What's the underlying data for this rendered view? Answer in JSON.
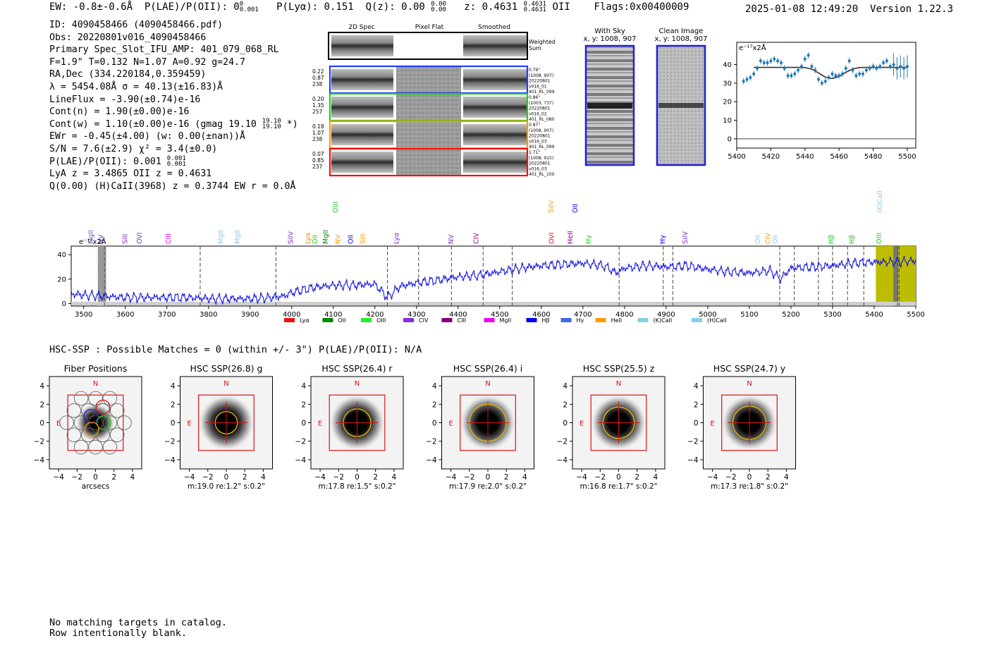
{
  "header": {
    "ew": "EW: -0.8±-0.6Å",
    "plae_label": "P(LAE)/P(OII): 0",
    "plae_sup": "0",
    "plae_sub": "0.001",
    "plya": "P(Lyα): 0.151",
    "qz_label": "Q(z): 0.00",
    "qz_sup": "0.00",
    "qz_sub": "0.00",
    "z_label": "z: 0.4631",
    "z_sup": "0.4631",
    "z_sub": "0.4631",
    "z_line": "OII",
    "flags": "Flags:0x00400009",
    "timestamp": "2025-01-08 12:49:20",
    "version": "Version 1.22.3"
  },
  "info": {
    "id": "ID: 4090458466 (4090458466.pdf)",
    "obs": "Obs: 20220801v016_4090458466",
    "primary": "Primary Spec_Slot_IFU_AMP: 401_079_068_RL",
    "fiber": "F=1.9\"  T=0.132  N=1.07  A=0.92  g=24.7",
    "radec": "RA,Dec (334.220184,0.359459)",
    "lambda": "λ = 5454.08Å  σ = 40.13(±16.83)Å",
    "lineflux": "LineFlux = -3.90(±0.74)e-16",
    "contn": "Cont(n) = 1.90(±0.00)e-16",
    "contw_a": "Cont(w) = 1.10(±0.00)e-16 (gmag 19.10",
    "contw_sup": "19.10",
    "contw_sub": "19.10",
    "contw_b": "*)",
    "ewr": "EWr = -0.45(±4.00) (w: 0.00(±nan))Å",
    "sn": "S/N = 7.6(±2.9)  χ² = 3.4(±0.0)",
    "plae_a": "P(LAE)/P(OII): 0.001",
    "plae_sup": "0.001",
    "plae_sub": "0.001",
    "lya": "LyA z = 3.4865  OII z = 0.4631",
    "q": "Q(0.00) (H)CaII(3968) z = 0.3744  EW r = 0.0Å"
  },
  "cutouts": {
    "headers": [
      "2D Spec",
      "Pixel Flat",
      "Smoothed"
    ],
    "weighted_sum_1": "Weighted",
    "weighted_sum_2": "Sum",
    "rows": [
      {
        "left": [
          "0.22",
          "0.87",
          "238"
        ],
        "right": [
          "0.79\"",
          "(1008, 907)",
          "20220801",
          "v016_01",
          "401_RL_099"
        ],
        "color": "#1f3fff"
      },
      {
        "left": [
          "0.20",
          "1.35",
          "257"
        ],
        "right": [
          "0.86\"",
          "(1003, 737)",
          "20220801",
          "v016_02",
          "401_RL_080"
        ],
        "color": "#22cc22"
      },
      {
        "left": [
          "0.18",
          "1.07",
          "238"
        ],
        "right": [
          "0.87\"",
          "(1008, 907)",
          "20220801",
          "v016_03",
          "401_RL_099"
        ],
        "color": "#ff9900"
      },
      {
        "left": [
          "0.07",
          "0.85",
          "237"
        ],
        "right": [
          "1.71\"",
          "(1008, 915)",
          "20220801",
          "v016_03",
          "401_RL_100"
        ],
        "color": "#ee1111"
      }
    ]
  },
  "sky_panels": {
    "with_sky": "With Sky",
    "with_sky_xy": "x, y: 1008, 907",
    "clean": "Clean Image",
    "clean_xy": "x, y: 1008, 907"
  },
  "chart_data": [
    {
      "type": "scatter",
      "title": "",
      "unit_label": "e⁻¹⁷x2Å",
      "xlim": [
        5400,
        5505
      ],
      "ylim": [
        -5,
        52
      ],
      "xticks": [
        5400,
        5420,
        5440,
        5460,
        5480,
        5500
      ],
      "yticks": [
        0,
        10,
        20,
        30,
        40
      ],
      "points": {
        "x": [
          5404,
          5406,
          5408,
          5410,
          5412,
          5414,
          5416,
          5418,
          5420,
          5422,
          5424,
          5426,
          5428,
          5430,
          5432,
          5434,
          5436,
          5438,
          5440,
          5442,
          5444,
          5446,
          5448,
          5450,
          5452,
          5454,
          5456,
          5458,
          5460,
          5462,
          5464,
          5466,
          5468,
          5470,
          5472,
          5474,
          5476,
          5478,
          5480,
          5482,
          5484,
          5486,
          5488,
          5490,
          5492,
          5494,
          5496,
          5498,
          5500
        ],
        "y": [
          31,
          32,
          33,
          35,
          38,
          42,
          41,
          41,
          42,
          43,
          42,
          41,
          38,
          34,
          34,
          35,
          37,
          39,
          43,
          45,
          39,
          37,
          32,
          30,
          31,
          33,
          35,
          34,
          34,
          35,
          38,
          42,
          37,
          34,
          35,
          35,
          37,
          38,
          39,
          38,
          39,
          41,
          42,
          39,
          40,
          38,
          39,
          38,
          39
        ]
      },
      "model": {
        "x": [
          5410,
          5420,
          5430,
          5436,
          5440,
          5444,
          5448,
          5452,
          5456,
          5460,
          5464,
          5468,
          5472,
          5476,
          5480,
          5490,
          5500
        ],
        "y": [
          38.5,
          38.5,
          38.5,
          38.5,
          38.4,
          37.5,
          35.5,
          33.2,
          32.5,
          33.6,
          35.8,
          37.7,
          38.4,
          38.5,
          38.5,
          38.5,
          38.5
        ]
      }
    },
    {
      "type": "line",
      "title": "",
      "unit_label": "e⁻¹⁷x2Å",
      "xlim": [
        3470,
        5500
      ],
      "ylim": [
        -2,
        47
      ],
      "xticks": [
        3500,
        3600,
        3700,
        3800,
        3900,
        4000,
        4100,
        4200,
        4300,
        4400,
        4500,
        4600,
        4700,
        4800,
        4900,
        5000,
        5100,
        5200,
        5300,
        5400,
        5500
      ],
      "yticks": [
        0,
        20,
        40
      ],
      "continuum": {
        "x": [
          3470,
          3500,
          3550,
          3600,
          3650,
          3700,
          3750,
          3800,
          3850,
          3900,
          3950,
          3980,
          4000,
          4050,
          4100,
          4150,
          4200,
          4230,
          4260,
          4300,
          4350,
          4400,
          4450,
          4500,
          4550,
          4600,
          4650,
          4700,
          4750,
          4780,
          4800,
          4850,
          4900,
          4950,
          5000,
          5050,
          5100,
          5150,
          5175,
          5200,
          5250,
          5300,
          5350,
          5400,
          5450,
          5500
        ],
        "y": [
          8,
          7,
          6,
          5,
          5,
          5,
          5,
          4,
          4,
          4,
          5,
          6,
          9,
          13,
          15,
          15,
          16,
          5,
          14,
          17,
          19,
          22,
          23,
          26,
          29,
          31,
          32,
          33,
          31,
          25,
          29,
          31,
          30,
          31,
          28,
          26,
          25,
          27,
          20,
          29,
          30,
          31,
          33,
          34,
          34,
          35
        ]
      },
      "marked_lines": [
        3550,
        3780,
        3962,
        4230,
        4305,
        4384,
        4460,
        4530,
        4787,
        4893,
        4916,
        5173,
        5208,
        5266,
        5300,
        5336,
        5375,
        5456,
        5460
      ],
      "line_labels": [
        {
          "text": "MgII",
          "x": 3516,
          "color": "#6a5acd"
        },
        {
          "text": "NV",
          "x": 3540,
          "color": "#7b2cbf"
        },
        {
          "text": "SiII",
          "x": 3598,
          "color": "#7b2cbf"
        },
        {
          "text": "OVI",
          "x": 3633,
          "color": "#7b2cbf"
        },
        {
          "text": "CIII",
          "x": 3702,
          "color": "#ee00ee"
        },
        {
          "text": "MgII",
          "x": 3828,
          "color": "#87ceeb"
        },
        {
          "text": "MgII",
          "x": 3868,
          "color": "#87ceeb"
        },
        {
          "text": "SiIV",
          "x": 3996,
          "color": "#7b2cbf"
        },
        {
          "text": "Lyα",
          "x": 4038,
          "color": "#ff8800"
        },
        {
          "text": "OII",
          "x": 4055,
          "color": "#22cc22"
        },
        {
          "text": "MgII",
          "x": 4080,
          "color": "#008800"
        },
        {
          "text": "NV",
          "x": 4110,
          "color": "#ff9900"
        },
        {
          "text": "OII",
          "x": 4140,
          "color": "#0000ff"
        },
        {
          "text": "SiII",
          "x": 4170,
          "color": "#ff9900"
        },
        {
          "text": "Lyα",
          "x": 4250,
          "color": "#7b2cbf"
        },
        {
          "text": "NV",
          "x": 4382,
          "color": "#7b2cbf"
        },
        {
          "text": "CIV",
          "x": 4442,
          "color": "#800080"
        },
        {
          "text": "OVI",
          "x": 4623,
          "color": "#ee1111"
        },
        {
          "text": "HeII",
          "x": 4668,
          "color": "#800080"
        },
        {
          "text": "Hγ",
          "x": 4712,
          "color": "#22cc22"
        },
        {
          "text": "Hγ",
          "x": 4890,
          "color": "#0000ff"
        },
        {
          "text": "SiIV",
          "x": 4944,
          "color": "#7b2cbf"
        },
        {
          "text": "OII",
          "x": 5119,
          "color": "#87ceeb"
        },
        {
          "text": "CIV",
          "x": 5143,
          "color": "#ff9900"
        },
        {
          "text": "OII",
          "x": 5160,
          "color": "#87ceeb"
        },
        {
          "text": "Hβ",
          "x": 5295,
          "color": "#22cc22"
        },
        {
          "text": "Hβ",
          "x": 5345,
          "color": "#22cc22"
        },
        {
          "text": "OIII",
          "x": 5410,
          "color": "#22cc22"
        }
      ],
      "upper_labels": [
        {
          "text": "OIII",
          "x": 4104,
          "color": "#22cc22"
        },
        {
          "text": "SiIV",
          "x": 4622,
          "color": "#ff9900"
        },
        {
          "text": "OII",
          "x": 4680,
          "color": "#0000ff"
        },
        {
          "text": "(K)CaII",
          "x": 5412,
          "color": "#87ceeb"
        }
      ],
      "legend": [
        {
          "name": "Lyα",
          "color": "#ee1111"
        },
        {
          "name": "OII",
          "color": "#008800"
        },
        {
          "name": "OIII",
          "color": "#22ee22"
        },
        {
          "name": "CIV",
          "color": "#8a2be2"
        },
        {
          "name": "CIII",
          "color": "#800080"
        },
        {
          "name": "MgII",
          "color": "#ee00ee"
        },
        {
          "name": "Hβ",
          "color": "#0000ee"
        },
        {
          "name": "Hγ",
          "color": "#4169e1"
        },
        {
          "name": "HeII",
          "color": "#ff9900"
        },
        {
          "name": "(K)CaII",
          "color": "#87ceeb"
        },
        {
          "name": "(H)CaII",
          "color": "#87ceeb"
        }
      ]
    }
  ],
  "hsc": {
    "summary": "HSC-SSP : Possible Matches = 0 (within +/- 3\")  P(LAE)/P(OII): N/A",
    "north_label": "N",
    "east_label": "E",
    "axis_ticks": [
      -4,
      -2,
      0,
      2,
      4
    ],
    "xlabel_first": "arcsecs",
    "panels": [
      {
        "title": "Fiber Positions",
        "caption": "arcsecs",
        "radius_frac": 0
      },
      {
        "title": "HSC SSP(26.8) g",
        "caption": "m:19.0  re:1.2\"  s:0.2\"",
        "radius_frac": 1.2
      },
      {
        "title": "HSC SSP(26.4) r",
        "caption": "m:17.8  re:1.5\"  s:0.2\"",
        "radius_frac": 1.5
      },
      {
        "title": "HSC SSP(26.4) i",
        "caption": "m:17.9  re:2.0\"  s:0.2\"",
        "radius_frac": 2.0
      },
      {
        "title": "HSC SSP(25.5) z",
        "caption": "m:16.8  re:1.7\"  s:0.2\"",
        "radius_frac": 1.7
      },
      {
        "title": "HSC SSP(24.7) y",
        "caption": "m:17.3  re:1.8\"  s:0.2\"",
        "radius_frac": 1.8
      }
    ]
  },
  "footer": {
    "line1": "No matching targets in catalog.",
    "line2": "Row intentionally blank."
  }
}
